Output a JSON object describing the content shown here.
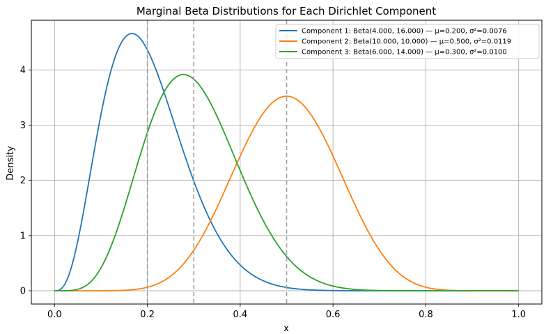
{
  "chart_data": {
    "type": "line",
    "title": "Marginal Beta Distributions for Each Dirichlet Component",
    "xlabel": "x",
    "ylabel": "Density",
    "xlim": [
      -0.05,
      1.05
    ],
    "ylim": [
      -0.24,
      4.9
    ],
    "x_ticks": [
      0.0,
      0.2,
      0.4,
      0.6,
      0.8,
      1.0
    ],
    "x_tick_labels": [
      "0.0",
      "0.2",
      "0.4",
      "0.6",
      "0.8",
      "1.0"
    ],
    "y_ticks": [
      0,
      1,
      2,
      3,
      4
    ],
    "y_tick_labels": [
      "0",
      "1",
      "2",
      "3",
      "4"
    ],
    "grid": true,
    "legend_position": "top-right",
    "series": [
      {
        "name": "Component 1: Beta(4.000, 16.000) — μ=0.200, σ²=0.0076",
        "alpha": 4,
        "beta": 16,
        "mean": 0.2,
        "color": "#1f77b4"
      },
      {
        "name": "Component 2: Beta(10.000, 10.000) — μ=0.500, σ²=0.0119",
        "alpha": 10,
        "beta": 10,
        "mean": 0.5,
        "color": "#ff7f0e"
      },
      {
        "name": "Component 3: Beta(6.000, 14.000) — μ=0.300, σ²=0.0100",
        "alpha": 6,
        "beta": 14,
        "mean": 0.3,
        "color": "#2ca02c"
      }
    ],
    "mean_lines": {
      "x": [
        0.2,
        0.5,
        0.3
      ],
      "color": "#a0a0a0",
      "style": "dashed"
    }
  }
}
